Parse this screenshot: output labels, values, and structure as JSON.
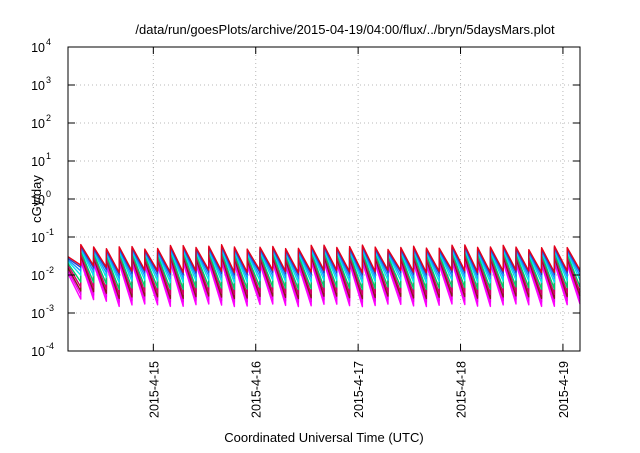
{
  "chart_data": {
    "type": "line",
    "title": "/data/run/goesPlots/archive/2015-04-19/04:00/flux/../bryn/5daysMars.plot",
    "xlabel": "Coordinated Universal Time (UTC)",
    "ylabel": "cGy/day",
    "x_start": "2015-04-14T04:00",
    "x_end": "2015-04-19T04:00",
    "x_ticks": [
      "2015-4-15",
      "2015-4-16",
      "2015-4-17",
      "2015-4-18",
      "2015-4-19"
    ],
    "y_scale": "log",
    "ylim": [
      0.0001,
      10000
    ],
    "y_ticks": [
      {
        "base": "10",
        "exp": "-4"
      },
      {
        "base": "10",
        "exp": "-3"
      },
      {
        "base": "10",
        "exp": "-2"
      },
      {
        "base": "10",
        "exp": "-1"
      },
      {
        "base": "10",
        "exp": "0"
      },
      {
        "base": "10",
        "exp": "1"
      },
      {
        "base": "10",
        "exp": "2"
      },
      {
        "base": "10",
        "exp": "3"
      },
      {
        "base": "10",
        "exp": "4"
      }
    ],
    "grid": true,
    "sawtooth_period_hours": 3,
    "series": [
      {
        "color": "#ff00ff",
        "peak": 0.02,
        "trough": 0.0016
      },
      {
        "color": "#ee00ee",
        "peak": 0.024,
        "trough": 0.0021
      },
      {
        "color": "#8b1a1a",
        "peak": 0.028,
        "trough": 0.0026
      },
      {
        "color": "#d4006a",
        "peak": 0.033,
        "trough": 0.0033
      },
      {
        "color": "#00cc66",
        "peak": 0.037,
        "trough": 0.0045
      },
      {
        "color": "#00e5ee",
        "peak": 0.042,
        "trough": 0.0068
      },
      {
        "color": "#1e90ff",
        "peak": 0.046,
        "trough": 0.0088
      },
      {
        "color": "#2b3fc4",
        "peak": 0.05,
        "trough": 0.011
      },
      {
        "color": "#e6001a",
        "peak": 0.055,
        "trough": 0.0125
      }
    ]
  }
}
